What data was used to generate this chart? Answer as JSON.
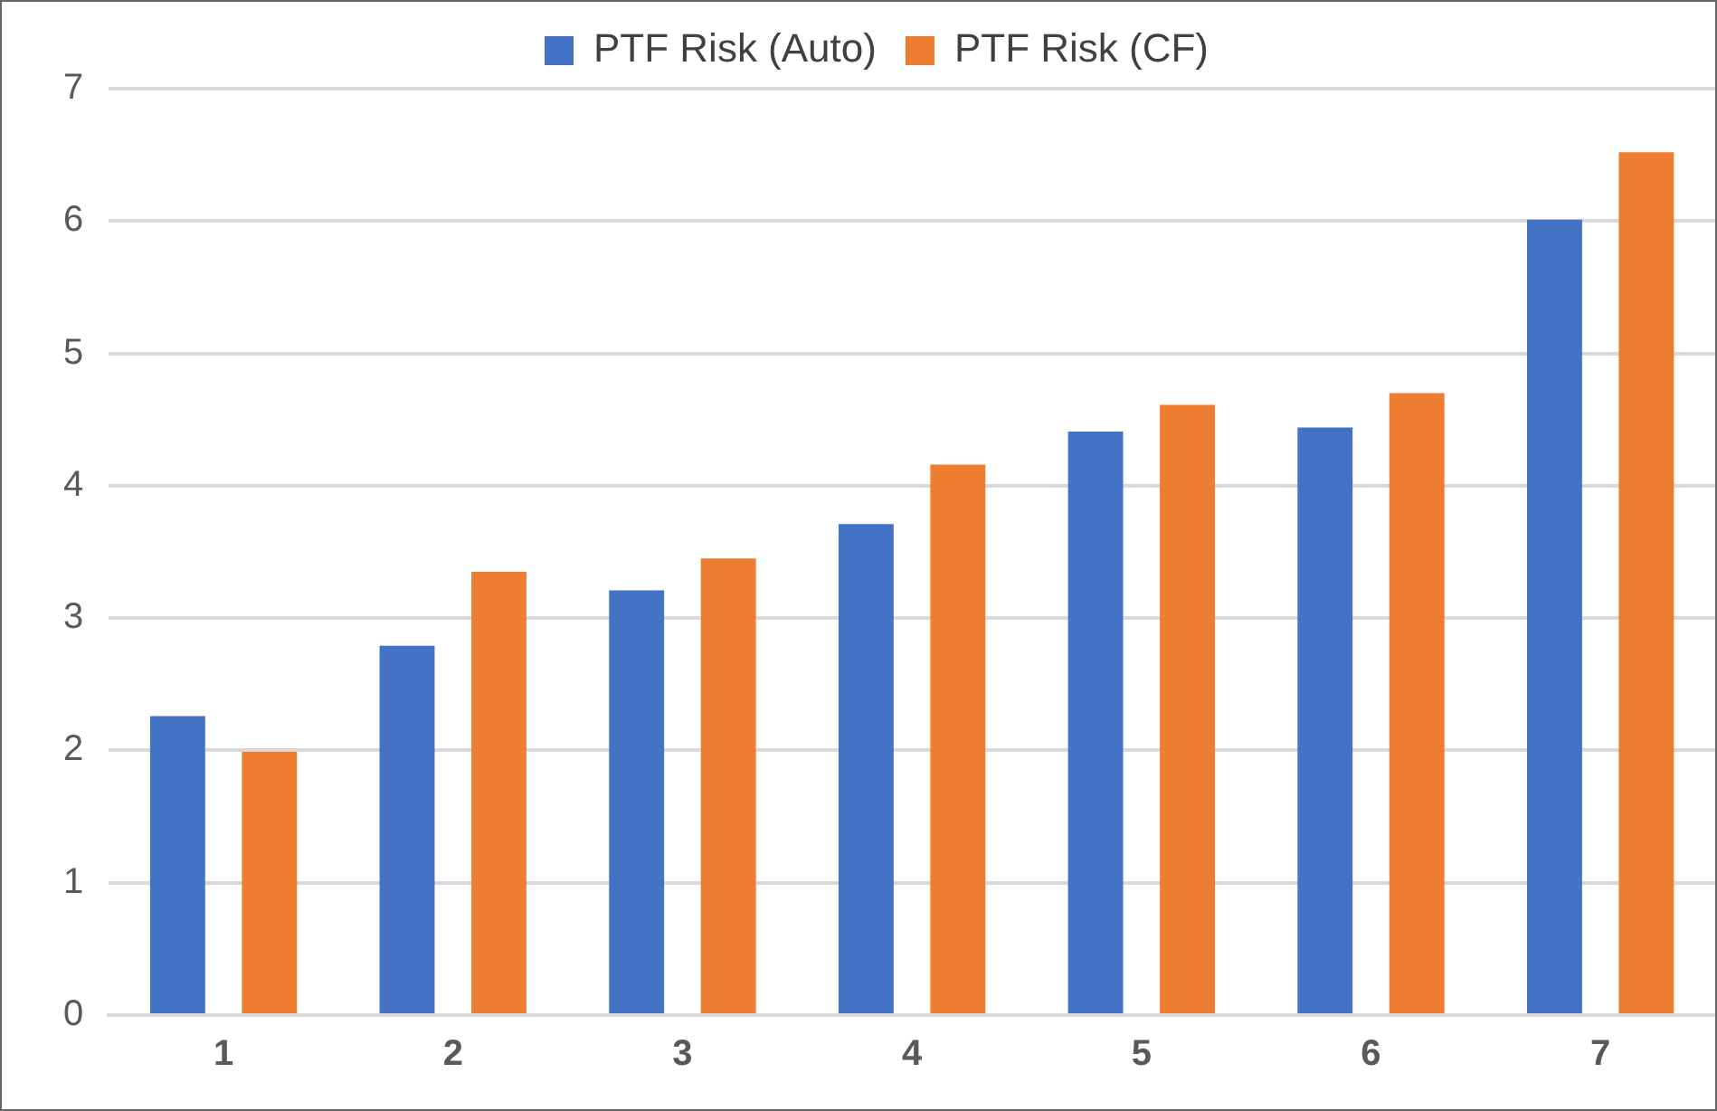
{
  "chart_data": {
    "type": "bar",
    "categories": [
      "1",
      "2",
      "3",
      "4",
      "5",
      "6",
      "7"
    ],
    "series": [
      {
        "name": "PTF Risk (Auto)",
        "color": "#4472c4",
        "values": [
          2.26,
          2.79,
          3.21,
          3.71,
          4.41,
          4.44,
          6.01
        ]
      },
      {
        "name": "PTF Risk (CF)",
        "color": "#ed7d31",
        "values": [
          1.99,
          3.35,
          3.45,
          4.16,
          4.61,
          4.7,
          6.52
        ]
      }
    ],
    "ylim": [
      0,
      7
    ],
    "yticks": [
      0,
      1,
      2,
      3,
      4,
      5,
      6,
      7
    ],
    "grid": "y",
    "legend": "top"
  }
}
